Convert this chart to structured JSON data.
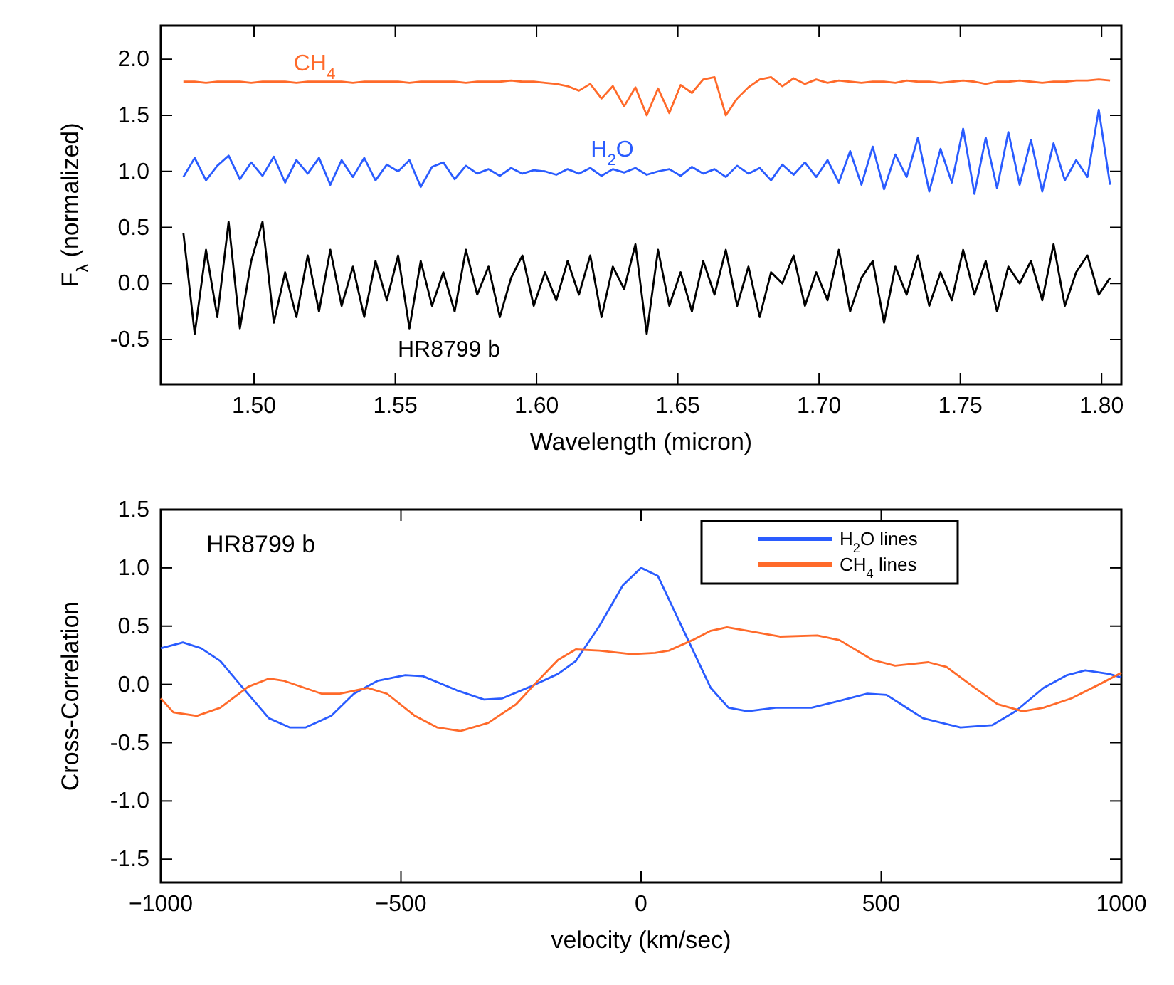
{
  "chart_data": [
    {
      "type": "line",
      "xlabel": "Wavelength (micron)",
      "ylabel": "F$_{λ}$ (normalized)",
      "legend": false,
      "xlim": [
        1.467,
        1.807
      ],
      "ylim": [
        -0.9,
        2.3
      ],
      "xticks": [
        {
          "value": 1.5,
          "label": "1.50"
        },
        {
          "value": 1.55,
          "label": "1.55"
        },
        {
          "value": 1.6,
          "label": "1.60"
        },
        {
          "value": 1.65,
          "label": "1.65"
        },
        {
          "value": 1.7,
          "label": "1.70"
        },
        {
          "value": 1.75,
          "label": "1.75"
        },
        {
          "value": 1.8,
          "label": "1.80"
        }
      ],
      "yticks": [
        {
          "value": -0.5,
          "label": "-0.5"
        },
        {
          "value": 0,
          "label": "0.0"
        },
        {
          "value": 0.5,
          "label": "0.5"
        },
        {
          "value": 1,
          "label": "1.0"
        },
        {
          "value": 1.5,
          "label": "1.5"
        },
        {
          "value": 2,
          "label": "2.0"
        }
      ],
      "x": [
        1.475,
        1.479,
        1.483,
        1.487,
        1.491,
        1.495,
        1.499,
        1.503,
        1.507,
        1.511,
        1.515,
        1.519,
        1.523,
        1.527,
        1.531,
        1.535,
        1.539,
        1.543,
        1.547,
        1.551,
        1.555,
        1.559,
        1.563,
        1.567,
        1.571,
        1.575,
        1.579,
        1.583,
        1.587,
        1.591,
        1.595,
        1.599,
        1.603,
        1.607,
        1.611,
        1.615,
        1.619,
        1.623,
        1.627,
        1.631,
        1.635,
        1.639,
        1.643,
        1.647,
        1.651,
        1.655,
        1.659,
        1.663,
        1.667,
        1.671,
        1.675,
        1.679,
        1.683,
        1.687,
        1.691,
        1.695,
        1.699,
        1.703,
        1.707,
        1.711,
        1.715,
        1.719,
        1.723,
        1.727,
        1.731,
        1.735,
        1.739,
        1.743,
        1.747,
        1.751,
        1.755,
        1.759,
        1.763,
        1.767,
        1.771,
        1.775,
        1.779,
        1.783,
        1.787,
        1.791,
        1.795,
        1.799,
        1.803
      ],
      "series": [
        {
          "name": "CH$_{4}$",
          "color": "#ff6a2a",
          "values": [
            1.8,
            1.8,
            1.79,
            1.8,
            1.8,
            1.8,
            1.79,
            1.8,
            1.8,
            1.8,
            1.79,
            1.8,
            1.8,
            1.8,
            1.8,
            1.79,
            1.8,
            1.8,
            1.8,
            1.8,
            1.79,
            1.8,
            1.8,
            1.8,
            1.8,
            1.79,
            1.8,
            1.8,
            1.8,
            1.81,
            1.8,
            1.8,
            1.79,
            1.78,
            1.76,
            1.72,
            1.78,
            1.65,
            1.76,
            1.58,
            1.75,
            1.5,
            1.74,
            1.52,
            1.77,
            1.7,
            1.82,
            1.84,
            1.5,
            1.65,
            1.75,
            1.82,
            1.84,
            1.76,
            1.83,
            1.78,
            1.82,
            1.79,
            1.81,
            1.8,
            1.79,
            1.8,
            1.8,
            1.79,
            1.81,
            1.8,
            1.8,
            1.79,
            1.8,
            1.81,
            1.8,
            1.78,
            1.8,
            1.8,
            1.81,
            1.8,
            1.79,
            1.8,
            1.8,
            1.81,
            1.81,
            1.82,
            1.81
          ]
        },
        {
          "name": "H$_{2}$O",
          "color": "#2a5cff",
          "values": [
            0.95,
            1.12,
            0.92,
            1.05,
            1.14,
            0.93,
            1.08,
            0.96,
            1.13,
            0.9,
            1.1,
            0.98,
            1.12,
            0.88,
            1.1,
            0.95,
            1.12,
            0.92,
            1.06,
            1.0,
            1.1,
            0.86,
            1.04,
            1.08,
            0.93,
            1.05,
            0.98,
            1.02,
            0.96,
            1.03,
            0.98,
            1.01,
            1.0,
            0.97,
            1.02,
            0.98,
            1.03,
            0.96,
            1.02,
            0.99,
            1.03,
            0.97,
            1.0,
            1.02,
            0.96,
            1.04,
            0.98,
            1.02,
            0.95,
            1.05,
            0.98,
            1.03,
            0.92,
            1.06,
            0.97,
            1.08,
            0.95,
            1.1,
            0.9,
            1.18,
            0.88,
            1.22,
            0.84,
            1.15,
            0.95,
            1.3,
            0.82,
            1.2,
            0.9,
            1.38,
            0.8,
            1.3,
            0.85,
            1.35,
            0.88,
            1.28,
            0.82,
            1.25,
            0.92,
            1.1,
            0.95,
            1.55,
            0.88
          ]
        },
        {
          "name": "HR8799 b",
          "color": "#000000",
          "values": [
            0.45,
            -0.45,
            0.3,
            -0.3,
            0.55,
            -0.4,
            0.2,
            0.55,
            -0.35,
            0.1,
            -0.3,
            0.25,
            -0.25,
            0.3,
            -0.2,
            0.15,
            -0.3,
            0.2,
            -0.15,
            0.25,
            -0.4,
            0.2,
            -0.2,
            0.1,
            -0.25,
            0.3,
            -0.1,
            0.15,
            -0.3,
            0.05,
            0.25,
            -0.2,
            0.1,
            -0.15,
            0.2,
            -0.1,
            0.25,
            -0.3,
            0.15,
            -0.05,
            0.35,
            -0.45,
            0.3,
            -0.2,
            0.1,
            -0.25,
            0.2,
            -0.1,
            0.3,
            -0.2,
            0.15,
            -0.3,
            0.1,
            0.0,
            0.25,
            -0.2,
            0.1,
            -0.15,
            0.3,
            -0.25,
            0.05,
            0.2,
            -0.35,
            0.15,
            -0.1,
            0.25,
            -0.2,
            0.1,
            -0.15,
            0.3,
            -0.1,
            0.2,
            -0.25,
            0.15,
            0.0,
            0.2,
            -0.15,
            0.35,
            -0.2,
            0.1,
            0.25,
            -0.1,
            0.05
          ]
        }
      ]
    },
    {
      "type": "line",
      "xlabel": "velocity (km/sec)",
      "ylabel": "Cross-Correlation",
      "legend": "top right",
      "annotations": [
        "HR8799 b"
      ],
      "xlim": [
        -1000,
        1000
      ],
      "ylim": [
        -1.7,
        1.5
      ],
      "xticks": [
        {
          "value": -1000,
          "label": "−1000"
        },
        {
          "value": -500,
          "label": "−500"
        },
        0,
        500,
        1000
      ],
      "yticks": [
        {
          "value": -1.5,
          "label": "-1.5"
        },
        {
          "value": -1,
          "label": "-1.0"
        },
        {
          "value": -0.5,
          "label": "-0.5"
        },
        {
          "value": 0,
          "label": "0.0"
        },
        {
          "value": 0.5,
          "label": "0.5"
        },
        {
          "value": 1,
          "label": "1.0"
        },
        {
          "value": 1.5,
          "label": "1.5"
        }
      ],
      "series": [
        {
          "name": "H$_{2}$O lines",
          "color": "#2a5cff",
          "x": [
            -1000,
            -954,
            -916,
            -876,
            -829,
            -775,
            -731,
            -699,
            -645,
            -598,
            -549,
            -491,
            -454,
            -384,
            -327,
            -289,
            -231,
            -173,
            -136,
            -87,
            -38,
            0,
            35,
            66,
            145,
            182,
            222,
            280,
            355,
            405,
            471,
            511,
            587,
            665,
            731,
            780,
            838,
            887,
            925,
            974,
            1000
          ],
          "values": [
            0.31,
            0.36,
            0.31,
            0.2,
            -0.03,
            -0.29,
            -0.37,
            -0.37,
            -0.27,
            -0.08,
            0.03,
            0.08,
            0.07,
            -0.05,
            -0.13,
            -0.12,
            -0.02,
            0.09,
            0.2,
            0.5,
            0.85,
            1.0,
            0.93,
            0.66,
            -0.03,
            -0.2,
            -0.23,
            -0.2,
            -0.2,
            -0.15,
            -0.08,
            -0.09,
            -0.29,
            -0.37,
            -0.35,
            -0.23,
            -0.03,
            0.08,
            0.12,
            0.09,
            0.06
          ]
        },
        {
          "name": "CH$_{4}$ lines",
          "color": "#ff6a2a",
          "x": [
            -1000,
            -974,
            -925,
            -876,
            -818,
            -775,
            -743,
            -665,
            -627,
            -569,
            -529,
            -471,
            -424,
            -376,
            -318,
            -260,
            -222,
            -173,
            -136,
            -87,
            -20,
            29,
            58,
            107,
            145,
            179,
            222,
            289,
            367,
            413,
            482,
            529,
            598,
            636,
            685,
            742,
            795,
            838,
            896,
            954,
            1000
          ],
          "values": [
            -0.12,
            -0.24,
            -0.27,
            -0.2,
            -0.02,
            0.05,
            0.03,
            -0.08,
            -0.08,
            -0.03,
            -0.08,
            -0.27,
            -0.37,
            -0.4,
            -0.33,
            -0.17,
            0.0,
            0.21,
            0.3,
            0.29,
            0.26,
            0.27,
            0.29,
            0.38,
            0.46,
            0.49,
            0.46,
            0.41,
            0.42,
            0.38,
            0.21,
            0.16,
            0.19,
            0.15,
            0.0,
            -0.17,
            -0.23,
            -0.2,
            -0.12,
            0.0,
            0.1
          ]
        }
      ]
    }
  ]
}
